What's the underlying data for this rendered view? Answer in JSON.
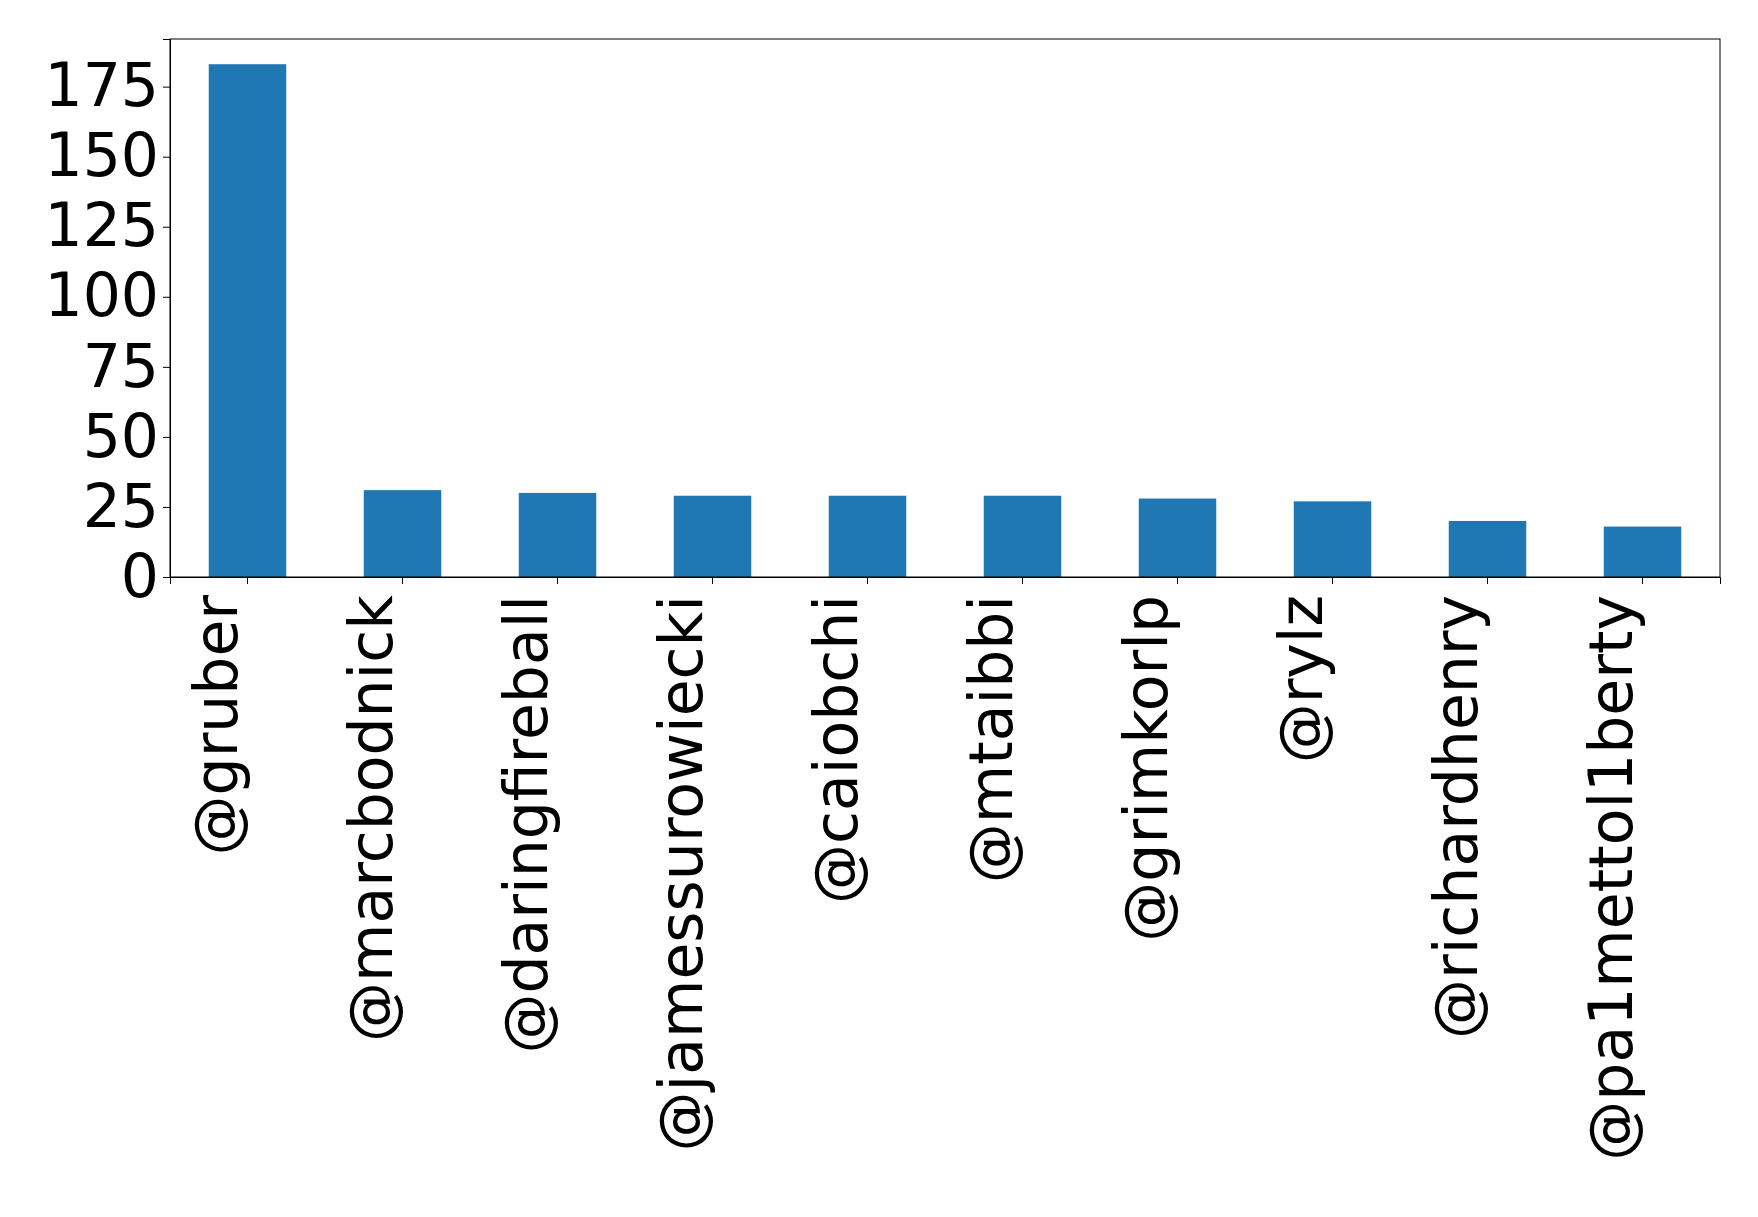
{
  "chart_data": {
    "type": "bar",
    "categories": [
      "@gruber",
      "@marcbodnick",
      "@daringfireball",
      "@jamessurowiecki",
      "@caiobchi",
      "@mtaibbi",
      "@grimkorlp",
      "@rylz",
      "@richardhenry",
      "@pa1mettol1berty"
    ],
    "values": [
      183,
      31,
      30,
      29,
      29,
      29,
      28,
      27,
      20,
      18
    ],
    "color": "#1f77b4",
    "ylim": [
      0,
      192
    ],
    "yticks": [
      0,
      25,
      50,
      75,
      100,
      125,
      150,
      175
    ],
    "grid": false
  }
}
